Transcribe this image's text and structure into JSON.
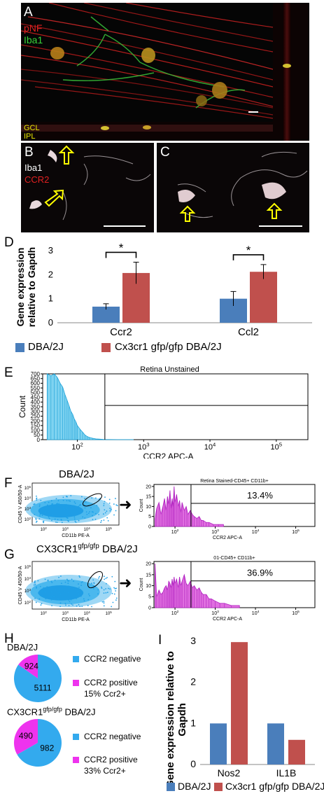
{
  "figure": {
    "panel_a": {
      "letter": "A",
      "stain_1": "pNF",
      "stain_2": "Iba1",
      "layer_1": "GCL",
      "layer_2": "IPL",
      "colors": {
        "pNF": "#e02020",
        "Iba1": "#39d339",
        "layers": "#e8e800",
        "letter": "#ffffff"
      }
    },
    "panel_b": {
      "letter": "B",
      "stain_1": "Iba1",
      "stain_2": "CCR2",
      "colors": {
        "Iba1": "#ffffff",
        "CCR2": "#e02020",
        "arrow": "#ffff00"
      }
    },
    "panel_c": {
      "letter": "C"
    },
    "panel_d": {
      "letter": "D"
    },
    "panel_e": {
      "letter": "E"
    },
    "panel_f": {
      "letter": "F",
      "strain": "DBA/2J"
    },
    "panel_g": {
      "letter": "G",
      "strain_prefix": "CX3CR1",
      "strain_sup": "gfp/gfp",
      "strain_suffix": " DBA/2J"
    },
    "panel_h": {
      "letter": "H"
    },
    "panel_i": {
      "letter": "I"
    }
  },
  "legend": {
    "series_1": "DBA/2J",
    "series_2": "Cx3cr1 gfp/gfp DBA/2J",
    "colors": {
      "series_1": "#4a7ebb",
      "series_2": "#c0504d"
    }
  },
  "chart_data": [
    {
      "id": "D",
      "type": "bar",
      "ylabel": "Gene expression relative to Gapdh",
      "categories": [
        "Ccr2",
        "Ccl2"
      ],
      "ylim": [
        0,
        3
      ],
      "yticks": [
        "0",
        "1",
        "2",
        "3"
      ],
      "series": [
        {
          "name": "DBA/2J",
          "values": [
            0.67,
            1.0
          ],
          "errors": [
            0.12,
            0.3
          ]
        },
        {
          "name": "Cx3cr1 gfp/gfp DBA/2J",
          "values": [
            2.07,
            2.12
          ],
          "errors": [
            0.45,
            0.3
          ]
        }
      ],
      "significance": [
        "*",
        "*"
      ]
    },
    {
      "id": "E",
      "type": "histogram",
      "title": "Retina Unstained",
      "xlabel": "CCR2 APC-A",
      "ylabel": "Count",
      "x_scale": "log",
      "xlim": [
        30,
        300000
      ],
      "ylim": [
        0,
        700
      ],
      "yticks": [
        0,
        50,
        100,
        150,
        200,
        250,
        300,
        350,
        400,
        450,
        500,
        550,
        600,
        650,
        700
      ],
      "gate_x": 260,
      "bins": [
        [
          35,
          720
        ],
        [
          40,
          680
        ],
        [
          45,
          740
        ],
        [
          50,
          660
        ],
        [
          55,
          600
        ],
        [
          60,
          560
        ],
        [
          65,
          480
        ],
        [
          70,
          420
        ],
        [
          75,
          360
        ],
        [
          80,
          300
        ],
        [
          85,
          270
        ],
        [
          90,
          220
        ],
        [
          95,
          190
        ],
        [
          100,
          150
        ],
        [
          110,
          110
        ],
        [
          120,
          80
        ],
        [
          130,
          50
        ],
        [
          140,
          35
        ],
        [
          150,
          25
        ],
        [
          170,
          15
        ],
        [
          190,
          8
        ],
        [
          220,
          5
        ],
        [
          250,
          3
        ],
        [
          300,
          2
        ],
        [
          400,
          1
        ],
        [
          700,
          1
        ]
      ]
    },
    {
      "id": "F-dot",
      "type": "scatter",
      "xlabel": "CD11b PE-A",
      "ylabel": "CD45 V 450/50-A",
      "x_scale": "log",
      "y_scale": "log",
      "xlim": [
        30,
        300000
      ],
      "ylim": [
        30,
        300000
      ]
    },
    {
      "id": "F-hist",
      "type": "histogram",
      "title": "Retina Stained-CD45+ CD11b+",
      "xlabel": "CCR2 APC-A",
      "ylabel": "Count",
      "x_scale": "log",
      "xlim": [
        30,
        300000
      ],
      "ylim": [
        0,
        21
      ],
      "yticks": [
        0,
        5,
        10,
        15,
        20
      ],
      "gate_x": 250,
      "gate_percent": "13.4%",
      "bins": [
        [
          32,
          4
        ],
        [
          35,
          9
        ],
        [
          40,
          12
        ],
        [
          45,
          6
        ],
        [
          50,
          10
        ],
        [
          55,
          14
        ],
        [
          60,
          8
        ],
        [
          65,
          15
        ],
        [
          70,
          11
        ],
        [
          75,
          18
        ],
        [
          80,
          9
        ],
        [
          85,
          14
        ],
        [
          90,
          10
        ],
        [
          95,
          20
        ],
        [
          100,
          12
        ],
        [
          110,
          16
        ],
        [
          120,
          10
        ],
        [
          130,
          13
        ],
        [
          140,
          7
        ],
        [
          150,
          12
        ],
        [
          170,
          8
        ],
        [
          190,
          10
        ],
        [
          210,
          6
        ],
        [
          240,
          8
        ],
        [
          270,
          6
        ],
        [
          300,
          5
        ],
        [
          350,
          4
        ],
        [
          400,
          5
        ],
        [
          450,
          3
        ],
        [
          500,
          3
        ],
        [
          600,
          2
        ],
        [
          700,
          2
        ],
        [
          900,
          1
        ],
        [
          1200,
          1
        ],
        [
          1600,
          1
        ]
      ]
    },
    {
      "id": "G-dot",
      "type": "scatter",
      "xlabel": "CD11b PE-A",
      "ylabel": "CD45 V 450/50-A",
      "x_scale": "log",
      "y_scale": "log",
      "xlim": [
        30,
        300000
      ],
      "ylim": [
        30,
        300000
      ]
    },
    {
      "id": "G-hist",
      "type": "histogram",
      "title": "01-CD45+ CD11b+",
      "xlabel": "CCR2 APC-A",
      "ylabel": "Count",
      "x_scale": "log",
      "xlim": [
        30,
        300000
      ],
      "ylim": [
        0,
        21
      ],
      "yticks": [
        0,
        5,
        10,
        15,
        20
      ],
      "gate_x": 250,
      "gate_percent": "36.9%",
      "bins": [
        [
          32,
          20
        ],
        [
          35,
          5
        ],
        [
          40,
          8
        ],
        [
          45,
          6
        ],
        [
          50,
          7
        ],
        [
          55,
          9
        ],
        [
          60,
          10
        ],
        [
          65,
          8
        ],
        [
          70,
          12
        ],
        [
          75,
          11
        ],
        [
          80,
          9
        ],
        [
          85,
          13
        ],
        [
          90,
          10
        ],
        [
          95,
          14
        ],
        [
          100,
          11
        ],
        [
          110,
          13
        ],
        [
          120,
          9
        ],
        [
          130,
          14
        ],
        [
          140,
          10
        ],
        [
          150,
          12
        ],
        [
          170,
          15
        ],
        [
          190,
          11
        ],
        [
          210,
          10
        ],
        [
          240,
          12
        ],
        [
          270,
          9
        ],
        [
          300,
          10
        ],
        [
          350,
          8
        ],
        [
          400,
          9
        ],
        [
          450,
          7
        ],
        [
          500,
          6
        ],
        [
          600,
          6
        ],
        [
          700,
          4
        ],
        [
          800,
          4
        ],
        [
          1000,
          3
        ],
        [
          1300,
          2
        ],
        [
          1700,
          2
        ],
        [
          2500,
          1
        ],
        [
          4000,
          1
        ]
      ]
    },
    {
      "id": "H1",
      "type": "pie",
      "title": "DBA/2J",
      "labels": [
        "CCR2 negative",
        "CCR2 positive"
      ],
      "values": [
        5111,
        924
      ],
      "colors": [
        "#33aaee",
        "#ee33ee"
      ],
      "note": "15% Ccr2+"
    },
    {
      "id": "H2",
      "type": "pie",
      "title_prefix": "CX3CR1",
      "title_sup": "gfp/gfp",
      "title_suffix": " DBA/2J",
      "labels": [
        "CCR2 negative",
        "CCR2 positive"
      ],
      "values": [
        982,
        490
      ],
      "colors": [
        "#33aaee",
        "#ee33ee"
      ],
      "note": "33% Ccr2+"
    },
    {
      "id": "I",
      "type": "bar",
      "ylabel": "Gene expression relative to Gapdh",
      "categories": [
        "Nos2",
        "IL1B"
      ],
      "ylim": [
        0,
        3
      ],
      "yticks": [
        "0",
        "1",
        "2",
        "3"
      ],
      "series": [
        {
          "name": "DBA/2J",
          "values": [
            1.0,
            1.0
          ]
        },
        {
          "name": "Cx3cr1 gfp/gfp DBA/2J",
          "values": [
            2.98,
            0.6
          ]
        }
      ]
    }
  ]
}
